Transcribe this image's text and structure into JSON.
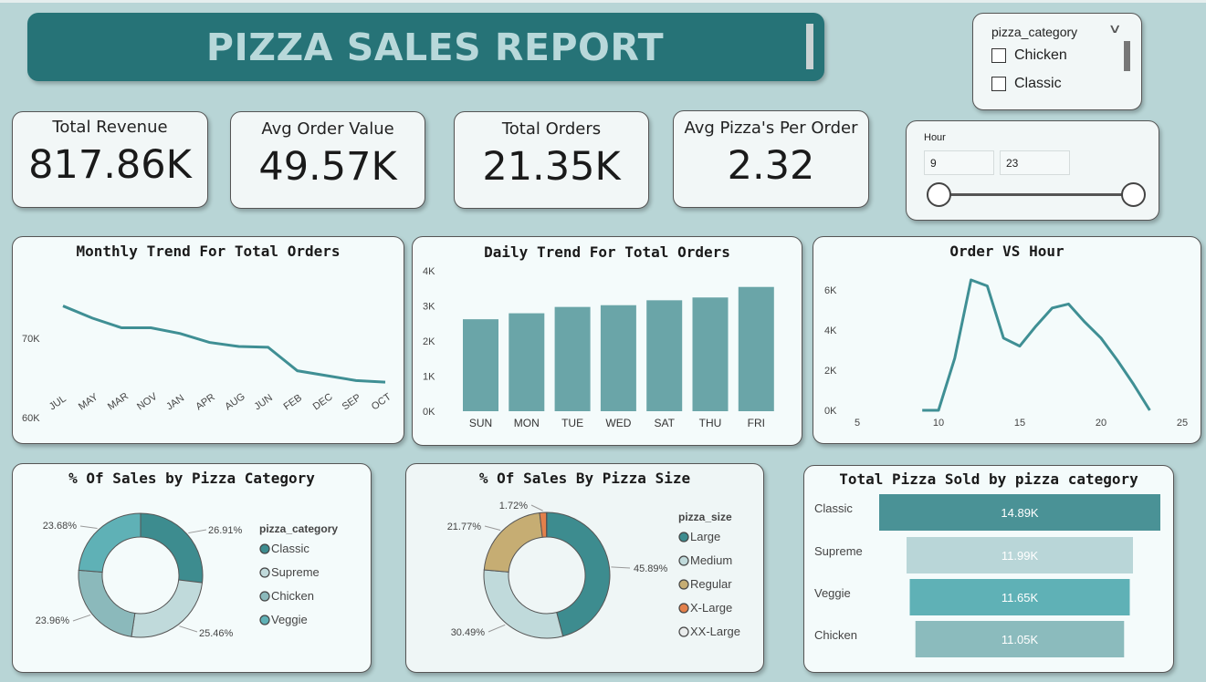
{
  "title": "PIZZA SALES REPORT",
  "kpis": [
    {
      "label": "Total Revenue",
      "value": "817.86K"
    },
    {
      "label": "Avg Order Value",
      "value": "49.57K"
    },
    {
      "label": "Total Orders",
      "value": "21.35K"
    },
    {
      "label": "Avg Pizza's Per Order",
      "value": "2.32"
    }
  ],
  "category_slicer": {
    "header": "pizza_category",
    "options": [
      "Chicken",
      "Classic"
    ]
  },
  "hour_slicer": {
    "header": "Hour",
    "min": "9",
    "max": "23"
  },
  "colors": {
    "accent": "#267377",
    "line": "#3f8f94",
    "bar": "#6aa5a8"
  },
  "chart_data": [
    {
      "type": "line",
      "title": "Monthly Trend For Total Orders",
      "categories": [
        "JUL",
        "MAY",
        "MAR",
        "NOV",
        "JAN",
        "APR",
        "AUG",
        "JUN",
        "FEB",
        "DEC",
        "SEP",
        "OCT"
      ],
      "values": [
        74,
        72.5,
        71.3,
        71.3,
        70.6,
        69.5,
        69,
        68.9,
        66,
        65.4,
        64.8,
        64.6
      ],
      "yticks": [
        "70K",
        "60K"
      ],
      "ylim": [
        60,
        78
      ]
    },
    {
      "type": "bar",
      "title": "Daily Trend For Total Orders",
      "categories": [
        "SUN",
        "MON",
        "TUE",
        "WED",
        "SAT",
        "THU",
        "FRI"
      ],
      "values": [
        2.62,
        2.79,
        2.97,
        3.02,
        3.16,
        3.24,
        3.54
      ],
      "yticks": [
        "4K",
        "3K",
        "2K",
        "1K",
        "0K"
      ],
      "ylim": [
        0,
        4
      ]
    },
    {
      "type": "line",
      "title": "Order VS Hour",
      "x": [
        9,
        10,
        11,
        12,
        13,
        14,
        15,
        16,
        17,
        18,
        19,
        20,
        21,
        22,
        23
      ],
      "values": [
        0,
        0,
        2.6,
        6.5,
        6.2,
        3.6,
        3.2,
        4.2,
        5.1,
        5.3,
        4.4,
        3.6,
        2.5,
        1.3,
        0
      ],
      "yticks": [
        "6K",
        "4K",
        "2K",
        "0K"
      ],
      "xticks": [
        "5",
        "10",
        "15",
        "20",
        "25"
      ],
      "xlim": [
        5,
        25
      ],
      "ylim": [
        0,
        7
      ]
    },
    {
      "type": "pie",
      "title": "% Of Sales by Pizza Category",
      "legend_title": "pizza_category",
      "slices": [
        {
          "name": "Classic",
          "value": 26.91,
          "label": "26.91%",
          "color": "#3d8c8f"
        },
        {
          "name": "Supreme",
          "value": 25.46,
          "label": "25.46%",
          "color": "#c0dadb"
        },
        {
          "name": "Chicken",
          "value": 23.96,
          "label": "23.96%",
          "color": "#8bb9bb"
        },
        {
          "name": "Veggie",
          "value": 23.68,
          "label": "23.68%",
          "color": "#5fb1b6"
        }
      ]
    },
    {
      "type": "pie",
      "title": "% Of Sales By Pizza Size",
      "legend_title": "pizza_size",
      "slices": [
        {
          "name": "Large",
          "value": 45.89,
          "label": "45.89%",
          "color": "#3d8c8f"
        },
        {
          "name": "Medium",
          "value": 30.49,
          "label": "30.49%",
          "color": "#c0dadb"
        },
        {
          "name": "Regular",
          "value": 21.77,
          "label": "21.77%",
          "color": "#c6ad73"
        },
        {
          "name": "X-Large",
          "value": 1.72,
          "label": "1.72%",
          "color": "#e3804b"
        },
        {
          "name": "XX-Large",
          "value": 0.12,
          "label": "",
          "color": "#e9ecec"
        }
      ]
    },
    {
      "type": "bar",
      "title": "Total Pizza Sold by pizza category",
      "orientation": "funnel",
      "categories": [
        "Classic",
        "Supreme",
        "Veggie",
        "Chicken"
      ],
      "values": [
        14.89,
        11.99,
        11.65,
        11.05
      ],
      "labels": [
        "14.89K",
        "11.99K",
        "11.65K",
        "11.05K"
      ],
      "colors": [
        "#4a9296",
        "#b9d6d8",
        "#5fb1b6",
        "#8bbbbd"
      ]
    }
  ]
}
